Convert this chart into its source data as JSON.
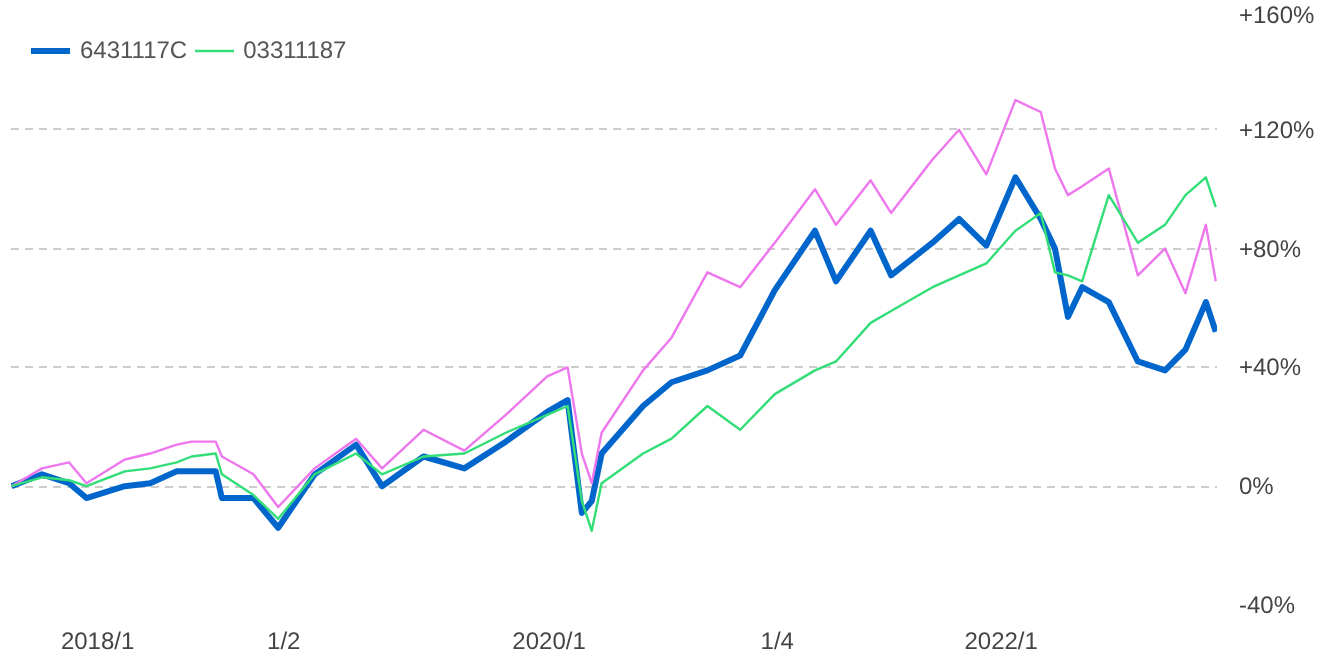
{
  "chart_data": {
    "type": "line",
    "x": [
      "2017-08-15",
      "2017-10-03",
      "2017-11-16",
      "2017-12-14",
      "2018-02-14",
      "2018-03-27",
      "2018-05-09",
      "2018-06-02",
      "2018-07-11",
      "2018-07-21",
      "2018-09-10",
      "2018-10-20",
      "2018-12-18",
      "2019-02-23",
      "2019-04-06",
      "2019-06-12",
      "2019-08-17",
      "2019-10-23",
      "2019-12-29",
      "2020-01-31",
      "2020-02-23",
      "2020-03-10",
      "2020-03-26",
      "2020-06-01",
      "2020-07-17",
      "2020-09-13",
      "2020-11-05",
      "2020-12-31",
      "2021-03-06",
      "2021-04-09",
      "2021-06-04",
      "2021-07-07",
      "2021-09-12",
      "2021-10-25",
      "2021-12-08",
      "2022-01-24",
      "2022-03-06",
      "2022-03-29",
      "2022-04-19",
      "2022-05-12",
      "2022-06-24",
      "2022-08-10",
      "2022-09-23",
      "2022-10-26",
      "2022-11-28",
      "2022-12-14"
    ],
    "series": [
      {
        "name": "6431117C",
        "color": "#0066cc",
        "values": [
          0,
          4,
          1,
          -4,
          0,
          1,
          5,
          5,
          5,
          -4,
          -4,
          -14,
          4,
          14,
          0,
          10,
          6,
          15,
          25,
          29,
          -9,
          -5,
          11,
          27,
          35,
          39,
          44,
          66,
          86,
          69,
          86,
          71,
          82,
          90,
          81,
          104,
          90,
          80,
          57,
          67,
          62,
          42,
          39,
          46,
          62,
          52
        ]
      },
      {
        "color": "#ee77ee",
        "values": [
          0,
          6,
          8,
          1,
          9,
          11,
          14,
          15,
          15,
          10,
          4,
          -7,
          6,
          16,
          6,
          19,
          12,
          24,
          37,
          40,
          11,
          1,
          18,
          39,
          50,
          72,
          67,
          82,
          100,
          88,
          103,
          92,
          110,
          120,
          105,
          130,
          126,
          107,
          98,
          101,
          107,
          71,
          80,
          65,
          88,
          69
        ]
      },
      {
        "name": "03311187",
        "color": "#33dd77",
        "values": [
          0,
          3,
          2,
          0,
          5,
          6,
          8,
          10,
          11,
          4,
          -3,
          -11,
          4,
          11,
          4,
          10,
          11,
          18,
          24,
          27,
          -5,
          -15,
          1,
          11,
          16,
          27,
          19,
          31,
          39,
          42,
          55,
          59,
          67,
          71,
          75,
          86,
          92,
          72,
          71,
          69,
          98,
          82,
          88,
          98,
          104,
          94
        ]
      }
    ],
    "xlim": [
      "2017-08-14",
      "2022-12-16"
    ],
    "xticks": [
      {
        "value": "2018-01-01",
        "label": "2018/1"
      },
      {
        "value": "2018-10-29",
        "label": "1/2"
      },
      {
        "value": "2020-01-01",
        "label": "2020/1"
      },
      {
        "value": "2021-01-04",
        "label": "1/4"
      },
      {
        "value": "2022-01-01",
        "label": "2022/1"
      }
    ],
    "ylim": [
      -40,
      160
    ],
    "yticks": [
      {
        "value": -40,
        "label": "-40%"
      },
      {
        "value": 0,
        "label": "0%"
      },
      {
        "value": 40,
        "label": "+40%"
      },
      {
        "value": 80,
        "label": "+80%"
      },
      {
        "value": 120,
        "label": "+120%"
      },
      {
        "value": 160,
        "label": "+160%"
      }
    ],
    "grid": "y",
    "legend": "top left"
  }
}
